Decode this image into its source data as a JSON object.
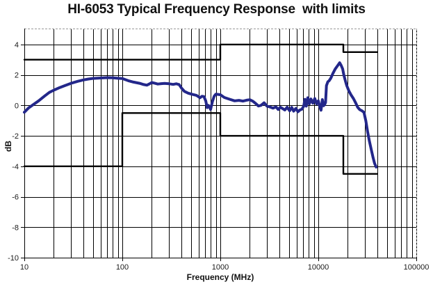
{
  "title": "HI-6053 Typical Frequency Response  with limits",
  "chart_data": {
    "type": "line",
    "title": "HI-6053 Typical Frequency Response  with limits",
    "xlabel": "Frequency (MHz)",
    "ylabel": "dB",
    "x_scale": "log",
    "xlim": [
      10,
      100000
    ],
    "ylim": [
      -10,
      5
    ],
    "x_ticks": [
      10,
      100,
      1000,
      10000,
      100000
    ],
    "x_tick_labels": [
      "10",
      "100",
      "1000",
      "10000",
      "100000"
    ],
    "y_ticks": [
      4,
      2,
      0,
      -2,
      -4,
      -6,
      -8,
      -10
    ],
    "y_tick_labels": [
      "4",
      "2",
      "0",
      "-2",
      "-4",
      "-6",
      "-8",
      "-10"
    ],
    "grid": true,
    "legend": false,
    "colors": {
      "response": "#23278a",
      "limit": "#000000",
      "gridline": "#000000",
      "border": "#999999",
      "tick_text": "#1a1a1a"
    },
    "series": [
      {
        "name": "typical-response",
        "color": "#23278a",
        "width": 4,
        "points": [
          [
            10,
            -0.45
          ],
          [
            11,
            -0.18
          ],
          [
            12.5,
            0.08
          ],
          [
            14,
            0.3
          ],
          [
            16,
            0.6
          ],
          [
            18,
            0.85
          ],
          [
            20,
            1.0
          ],
          [
            23,
            1.17
          ],
          [
            26,
            1.3
          ],
          [
            30,
            1.45
          ],
          [
            35,
            1.58
          ],
          [
            40,
            1.67
          ],
          [
            45,
            1.73
          ],
          [
            50,
            1.77
          ],
          [
            60,
            1.8
          ],
          [
            70,
            1.82
          ],
          [
            80,
            1.81
          ],
          [
            90,
            1.78
          ],
          [
            100,
            1.76
          ],
          [
            115,
            1.62
          ],
          [
            130,
            1.53
          ],
          [
            150,
            1.45
          ],
          [
            165,
            1.37
          ],
          [
            178,
            1.33
          ],
          [
            190,
            1.42
          ],
          [
            200,
            1.5
          ],
          [
            215,
            1.45
          ],
          [
            230,
            1.4
          ],
          [
            250,
            1.43
          ],
          [
            270,
            1.44
          ],
          [
            300,
            1.42
          ],
          [
            330,
            1.38
          ],
          [
            355,
            1.42
          ],
          [
            380,
            1.37
          ],
          [
            400,
            1.15
          ],
          [
            430,
            0.92
          ],
          [
            470,
            0.8
          ],
          [
            520,
            0.72
          ],
          [
            570,
            0.66
          ],
          [
            620,
            0.5
          ],
          [
            650,
            0.6
          ],
          [
            680,
            0.58
          ],
          [
            710,
            0.3
          ],
          [
            735,
            -0.15
          ],
          [
            755,
            0.0
          ],
          [
            775,
            -0.1
          ],
          [
            795,
            -0.27
          ],
          [
            830,
            0.25
          ],
          [
            865,
            0.6
          ],
          [
            900,
            0.74
          ],
          [
            950,
            0.72
          ],
          [
            1000,
            0.7
          ],
          [
            1100,
            0.52
          ],
          [
            1250,
            0.4
          ],
          [
            1400,
            0.3
          ],
          [
            1550,
            0.33
          ],
          [
            1700,
            0.28
          ],
          [
            1850,
            0.34
          ],
          [
            2000,
            0.37
          ],
          [
            2150,
            0.27
          ],
          [
            2300,
            0.12
          ],
          [
            2450,
            -0.04
          ],
          [
            2600,
            0.0
          ],
          [
            2800,
            0.17
          ],
          [
            3000,
            -0.06
          ],
          [
            3200,
            -0.1
          ],
          [
            3450,
            -0.18
          ],
          [
            3700,
            -0.1
          ],
          [
            3900,
            -0.27
          ],
          [
            4100,
            -0.12
          ],
          [
            4300,
            -0.2
          ],
          [
            4550,
            -0.3
          ],
          [
            4800,
            -0.12
          ],
          [
            5100,
            -0.35
          ],
          [
            5350,
            -0.13
          ],
          [
            5600,
            -0.38
          ],
          [
            5900,
            -0.2
          ],
          [
            6200,
            -0.42
          ],
          [
            6500,
            -0.3
          ],
          [
            6800,
            -0.25
          ],
          [
            7100,
            -0.05
          ],
          [
            7300,
            0.4
          ],
          [
            7550,
            -0.05
          ],
          [
            7800,
            0.5
          ],
          [
            8100,
            0.1
          ],
          [
            8400,
            0.42
          ],
          [
            8800,
            0.15
          ],
          [
            9200,
            0.45
          ],
          [
            9600,
            0.1
          ],
          [
            10000,
            0.3
          ],
          [
            10350,
            -0.1
          ],
          [
            10650,
            -0.32
          ],
          [
            11000,
            0.38
          ],
          [
            11300,
            -0.02
          ],
          [
            11600,
            0.05
          ],
          [
            11850,
            0.2
          ],
          [
            12100,
            1.3
          ],
          [
            12500,
            1.55
          ],
          [
            12900,
            1.62
          ],
          [
            13400,
            1.78
          ],
          [
            14100,
            2.1
          ],
          [
            14900,
            2.4
          ],
          [
            15700,
            2.6
          ],
          [
            16500,
            2.8
          ],
          [
            17100,
            2.62
          ],
          [
            17700,
            2.4
          ],
          [
            18200,
            2.0
          ],
          [
            18800,
            1.65
          ],
          [
            19500,
            1.3
          ],
          [
            20500,
            0.95
          ],
          [
            21500,
            0.7
          ],
          [
            22800,
            0.45
          ],
          [
            24000,
            0.18
          ],
          [
            25200,
            -0.12
          ],
          [
            26500,
            -0.28
          ],
          [
            27800,
            -0.35
          ],
          [
            29200,
            -0.45
          ],
          [
            30500,
            -1.0
          ],
          [
            31800,
            -1.7
          ],
          [
            33200,
            -2.35
          ],
          [
            34800,
            -2.95
          ],
          [
            36300,
            -3.45
          ],
          [
            37500,
            -3.8
          ],
          [
            39000,
            -4.05
          ]
        ]
      },
      {
        "name": "upper-limit",
        "color": "#000000",
        "width": 2.4,
        "points": [
          [
            10,
            3
          ],
          [
            1000,
            3
          ],
          [
            1000,
            4
          ],
          [
            18000,
            4
          ],
          [
            18000,
            3.5
          ],
          [
            40000,
            3.5
          ]
        ]
      },
      {
        "name": "lower-limit",
        "color": "#000000",
        "width": 2.4,
        "points": [
          [
            10,
            -4
          ],
          [
            100,
            -4
          ],
          [
            100,
            -0.5
          ],
          [
            1000,
            -0.5
          ],
          [
            1000,
            -2
          ],
          [
            18000,
            -2
          ],
          [
            18000,
            -4.5
          ],
          [
            40000,
            -4.5
          ]
        ]
      }
    ]
  }
}
